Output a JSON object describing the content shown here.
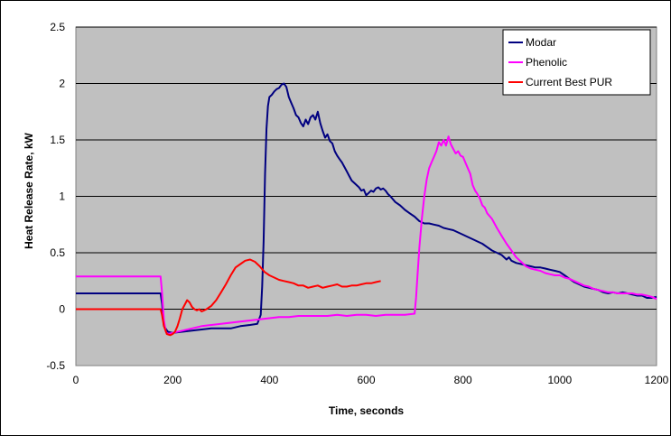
{
  "chart_data": {
    "type": "line",
    "xlabel": "Time, seconds",
    "ylabel": "Heat Release Rate, kW",
    "xlim": [
      0,
      1200
    ],
    "ylim": [
      -0.5,
      2.5
    ],
    "xticks": [
      0,
      200,
      400,
      600,
      800,
      1000,
      1200
    ],
    "yticks": [
      -0.5,
      0,
      0.5,
      1,
      1.5,
      2,
      2.5
    ],
    "x_tick_labels": [
      "0",
      "200",
      "400",
      "600",
      "800",
      "1000",
      "1200"
    ],
    "y_tick_labels": [
      "-0.5",
      "0",
      "0.5",
      "1",
      "1.5",
      "2",
      "2.5"
    ],
    "grid": "horizontal",
    "background": "#c0c0c0",
    "legend_position": "top-right",
    "series": [
      {
        "name": "Modar",
        "color": "#000080",
        "points": [
          [
            0,
            0.14
          ],
          [
            175,
            0.14
          ],
          [
            178,
            0.05
          ],
          [
            182,
            -0.15
          ],
          [
            190,
            -0.2
          ],
          [
            200,
            -0.21
          ],
          [
            220,
            -0.2
          ],
          [
            240,
            -0.19
          ],
          [
            260,
            -0.18
          ],
          [
            280,
            -0.17
          ],
          [
            300,
            -0.17
          ],
          [
            320,
            -0.17
          ],
          [
            340,
            -0.15
          ],
          [
            360,
            -0.14
          ],
          [
            375,
            -0.13
          ],
          [
            382,
            -0.05
          ],
          [
            385,
            0.2
          ],
          [
            388,
            0.6
          ],
          [
            391,
            1.2
          ],
          [
            394,
            1.6
          ],
          [
            397,
            1.8
          ],
          [
            400,
            1.88
          ],
          [
            405,
            1.9
          ],
          [
            410,
            1.93
          ],
          [
            415,
            1.95
          ],
          [
            420,
            1.96
          ],
          [
            425,
            1.99
          ],
          [
            430,
            2.0
          ],
          [
            435,
            1.97
          ],
          [
            440,
            1.88
          ],
          [
            445,
            1.83
          ],
          [
            450,
            1.78
          ],
          [
            455,
            1.72
          ],
          [
            460,
            1.7
          ],
          [
            465,
            1.65
          ],
          [
            470,
            1.62
          ],
          [
            475,
            1.68
          ],
          [
            480,
            1.64
          ],
          [
            485,
            1.7
          ],
          [
            490,
            1.72
          ],
          [
            495,
            1.68
          ],
          [
            500,
            1.75
          ],
          [
            505,
            1.65
          ],
          [
            510,
            1.58
          ],
          [
            515,
            1.52
          ],
          [
            520,
            1.55
          ],
          [
            525,
            1.49
          ],
          [
            530,
            1.47
          ],
          [
            535,
            1.4
          ],
          [
            540,
            1.36
          ],
          [
            545,
            1.33
          ],
          [
            550,
            1.3
          ],
          [
            555,
            1.26
          ],
          [
            560,
            1.22
          ],
          [
            565,
            1.18
          ],
          [
            570,
            1.14
          ],
          [
            575,
            1.12
          ],
          [
            580,
            1.1
          ],
          [
            585,
            1.08
          ],
          [
            590,
            1.05
          ],
          [
            595,
            1.06
          ],
          [
            600,
            1.01
          ],
          [
            605,
            1.03
          ],
          [
            610,
            1.05
          ],
          [
            615,
            1.04
          ],
          [
            620,
            1.07
          ],
          [
            625,
            1.08
          ],
          [
            630,
            1.06
          ],
          [
            635,
            1.07
          ],
          [
            640,
            1.05
          ],
          [
            645,
            1.02
          ],
          [
            650,
            1.0
          ],
          [
            660,
            0.95
          ],
          [
            670,
            0.92
          ],
          [
            680,
            0.88
          ],
          [
            690,
            0.85
          ],
          [
            700,
            0.82
          ],
          [
            710,
            0.78
          ],
          [
            720,
            0.76
          ],
          [
            730,
            0.76
          ],
          [
            740,
            0.75
          ],
          [
            750,
            0.74
          ],
          [
            760,
            0.72
          ],
          [
            770,
            0.71
          ],
          [
            780,
            0.7
          ],
          [
            790,
            0.68
          ],
          [
            800,
            0.66
          ],
          [
            810,
            0.64
          ],
          [
            820,
            0.62
          ],
          [
            830,
            0.6
          ],
          [
            840,
            0.58
          ],
          [
            850,
            0.55
          ],
          [
            860,
            0.52
          ],
          [
            870,
            0.5
          ],
          [
            880,
            0.48
          ],
          [
            890,
            0.44
          ],
          [
            895,
            0.46
          ],
          [
            900,
            0.43
          ],
          [
            910,
            0.41
          ],
          [
            920,
            0.4
          ],
          [
            930,
            0.39
          ],
          [
            940,
            0.38
          ],
          [
            950,
            0.37
          ],
          [
            960,
            0.37
          ],
          [
            970,
            0.36
          ],
          [
            980,
            0.35
          ],
          [
            990,
            0.34
          ],
          [
            1000,
            0.33
          ],
          [
            1010,
            0.3
          ],
          [
            1020,
            0.27
          ],
          [
            1030,
            0.24
          ],
          [
            1040,
            0.22
          ],
          [
            1050,
            0.2
          ],
          [
            1060,
            0.19
          ],
          [
            1070,
            0.18
          ],
          [
            1080,
            0.17
          ],
          [
            1090,
            0.15
          ],
          [
            1100,
            0.14
          ],
          [
            1110,
            0.15
          ],
          [
            1120,
            0.14
          ],
          [
            1130,
            0.15
          ],
          [
            1140,
            0.14
          ],
          [
            1150,
            0.13
          ],
          [
            1160,
            0.12
          ],
          [
            1170,
            0.12
          ],
          [
            1180,
            0.1
          ],
          [
            1190,
            0.1
          ],
          [
            1200,
            0.11
          ]
        ]
      },
      {
        "name": "Phenolic",
        "color": "#ff00ff",
        "points": [
          [
            0,
            0.29
          ],
          [
            175,
            0.29
          ],
          [
            178,
            0.15
          ],
          [
            182,
            -0.1
          ],
          [
            186,
            -0.2
          ],
          [
            190,
            -0.22
          ],
          [
            200,
            -0.21
          ],
          [
            220,
            -0.19
          ],
          [
            240,
            -0.17
          ],
          [
            260,
            -0.15
          ],
          [
            280,
            -0.14
          ],
          [
            300,
            -0.13
          ],
          [
            320,
            -0.12
          ],
          [
            340,
            -0.11
          ],
          [
            360,
            -0.1
          ],
          [
            380,
            -0.09
          ],
          [
            400,
            -0.08
          ],
          [
            420,
            -0.07
          ],
          [
            440,
            -0.07
          ],
          [
            460,
            -0.06
          ],
          [
            480,
            -0.06
          ],
          [
            500,
            -0.06
          ],
          [
            520,
            -0.06
          ],
          [
            540,
            -0.05
          ],
          [
            560,
            -0.06
          ],
          [
            580,
            -0.05
          ],
          [
            600,
            -0.05
          ],
          [
            620,
            -0.06
          ],
          [
            640,
            -0.05
          ],
          [
            660,
            -0.05
          ],
          [
            680,
            -0.05
          ],
          [
            700,
            -0.04
          ],
          [
            703,
            0.1
          ],
          [
            706,
            0.3
          ],
          [
            710,
            0.55
          ],
          [
            715,
            0.8
          ],
          [
            720,
            1.0
          ],
          [
            725,
            1.15
          ],
          [
            730,
            1.25
          ],
          [
            735,
            1.3
          ],
          [
            740,
            1.35
          ],
          [
            745,
            1.4
          ],
          [
            750,
            1.48
          ],
          [
            755,
            1.45
          ],
          [
            760,
            1.5
          ],
          [
            765,
            1.45
          ],
          [
            770,
            1.53
          ],
          [
            775,
            1.46
          ],
          [
            780,
            1.42
          ],
          [
            785,
            1.38
          ],
          [
            790,
            1.4
          ],
          [
            795,
            1.36
          ],
          [
            800,
            1.35
          ],
          [
            805,
            1.3
          ],
          [
            810,
            1.25
          ],
          [
            815,
            1.2
          ],
          [
            820,
            1.1
          ],
          [
            825,
            1.05
          ],
          [
            830,
            1.02
          ],
          [
            835,
            0.98
          ],
          [
            840,
            0.92
          ],
          [
            845,
            0.9
          ],
          [
            850,
            0.85
          ],
          [
            860,
            0.8
          ],
          [
            870,
            0.72
          ],
          [
            880,
            0.65
          ],
          [
            890,
            0.58
          ],
          [
            900,
            0.52
          ],
          [
            910,
            0.46
          ],
          [
            920,
            0.42
          ],
          [
            930,
            0.38
          ],
          [
            940,
            0.36
          ],
          [
            950,
            0.35
          ],
          [
            960,
            0.34
          ],
          [
            970,
            0.32
          ],
          [
            980,
            0.31
          ],
          [
            990,
            0.3
          ],
          [
            1000,
            0.3
          ],
          [
            1010,
            0.28
          ],
          [
            1020,
            0.27
          ],
          [
            1030,
            0.25
          ],
          [
            1040,
            0.23
          ],
          [
            1050,
            0.21
          ],
          [
            1060,
            0.2
          ],
          [
            1070,
            0.18
          ],
          [
            1080,
            0.17
          ],
          [
            1090,
            0.16
          ],
          [
            1100,
            0.15
          ],
          [
            1110,
            0.15
          ],
          [
            1120,
            0.14
          ],
          [
            1130,
            0.14
          ],
          [
            1140,
            0.14
          ],
          [
            1150,
            0.14
          ],
          [
            1160,
            0.13
          ],
          [
            1170,
            0.13
          ],
          [
            1180,
            0.12
          ],
          [
            1190,
            0.11
          ],
          [
            1200,
            0.09
          ]
        ]
      },
      {
        "name": "Current Best PUR",
        "color": "#ff0000",
        "points": [
          [
            0,
            0.0
          ],
          [
            175,
            0.0
          ],
          [
            178,
            -0.05
          ],
          [
            182,
            -0.15
          ],
          [
            188,
            -0.22
          ],
          [
            195,
            -0.23
          ],
          [
            200,
            -0.22
          ],
          [
            205,
            -0.2
          ],
          [
            210,
            -0.15
          ],
          [
            215,
            -0.08
          ],
          [
            220,
            0.0
          ],
          [
            225,
            0.04
          ],
          [
            230,
            0.08
          ],
          [
            235,
            0.06
          ],
          [
            240,
            0.02
          ],
          [
            245,
            0.0
          ],
          [
            250,
            -0.01
          ],
          [
            255,
            0.0
          ],
          [
            260,
            -0.02
          ],
          [
            265,
            -0.01
          ],
          [
            270,
            0.0
          ],
          [
            280,
            0.03
          ],
          [
            290,
            0.08
          ],
          [
            300,
            0.15
          ],
          [
            310,
            0.22
          ],
          [
            320,
            0.3
          ],
          [
            330,
            0.37
          ],
          [
            340,
            0.4
          ],
          [
            350,
            0.43
          ],
          [
            360,
            0.44
          ],
          [
            370,
            0.42
          ],
          [
            380,
            0.38
          ],
          [
            390,
            0.33
          ],
          [
            400,
            0.3
          ],
          [
            410,
            0.28
          ],
          [
            420,
            0.26
          ],
          [
            430,
            0.25
          ],
          [
            440,
            0.24
          ],
          [
            450,
            0.23
          ],
          [
            460,
            0.21
          ],
          [
            470,
            0.21
          ],
          [
            480,
            0.19
          ],
          [
            490,
            0.2
          ],
          [
            500,
            0.21
          ],
          [
            510,
            0.19
          ],
          [
            520,
            0.2
          ],
          [
            530,
            0.21
          ],
          [
            540,
            0.22
          ],
          [
            550,
            0.2
          ],
          [
            560,
            0.2
          ],
          [
            570,
            0.21
          ],
          [
            580,
            0.21
          ],
          [
            590,
            0.22
          ],
          [
            600,
            0.23
          ],
          [
            610,
            0.23
          ],
          [
            620,
            0.24
          ],
          [
            630,
            0.25
          ]
        ]
      }
    ]
  }
}
